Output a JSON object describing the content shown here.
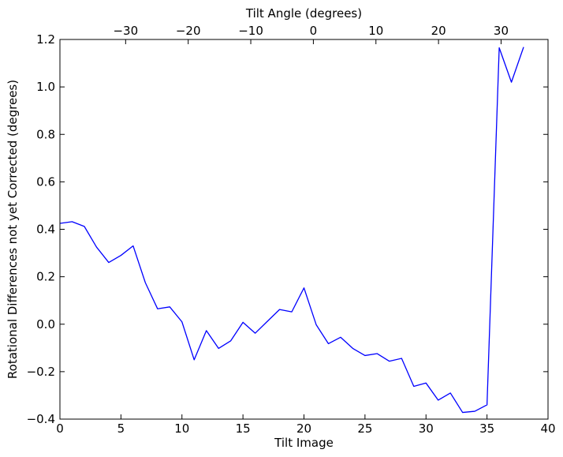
{
  "chart_data": {
    "type": "line",
    "title": "",
    "xlabel": "Tilt Image",
    "ylabel": "Rotational Differences not yet Corrected (degrees)",
    "x2label": "Tilt Angle (degrees)",
    "xlim": [
      0,
      40
    ],
    "ylim": [
      -0.4,
      1.2
    ],
    "x2lim": [
      -40.5,
      37.5
    ],
    "xticks": [
      0,
      5,
      10,
      15,
      20,
      25,
      30,
      35,
      40
    ],
    "yticks": [
      -0.4,
      -0.2,
      0.0,
      0.2,
      0.4,
      0.6,
      0.8,
      1.0,
      1.2
    ],
    "yticklabels": [
      "−0.4",
      "−0.2",
      "0.0",
      "0.2",
      "0.4",
      "0.6",
      "0.8",
      "1.0",
      "1.2"
    ],
    "x2ticks": [
      -30,
      -20,
      -10,
      0,
      10,
      20,
      30
    ],
    "x2ticklabels": [
      "−30",
      "−20",
      "−10",
      "0",
      "10",
      "20",
      "30"
    ],
    "grid": false,
    "line_color": "#0000ff",
    "series": [
      {
        "x": [
          0,
          1,
          2,
          3,
          4,
          5,
          6,
          7,
          8,
          9,
          10,
          11,
          12,
          13,
          14,
          15,
          16,
          17,
          18,
          19,
          20,
          21,
          22,
          23,
          24,
          25,
          26,
          27,
          28,
          29,
          30,
          31,
          32,
          33,
          34,
          35,
          36,
          37,
          38
        ],
        "values": [
          0.425,
          0.432,
          0.412,
          0.325,
          0.26,
          0.29,
          0.33,
          0.175,
          0.065,
          0.073,
          0.01,
          -0.15,
          -0.027,
          -0.102,
          -0.07,
          0.008,
          -0.038,
          0.012,
          0.062,
          0.052,
          0.153,
          -0.002,
          -0.082,
          -0.055,
          -0.102,
          -0.132,
          -0.124,
          -0.156,
          -0.144,
          -0.262,
          -0.248,
          -0.32,
          -0.29,
          -0.372,
          -0.367,
          -0.34,
          1.165,
          1.02,
          1.168
        ]
      }
    ]
  }
}
